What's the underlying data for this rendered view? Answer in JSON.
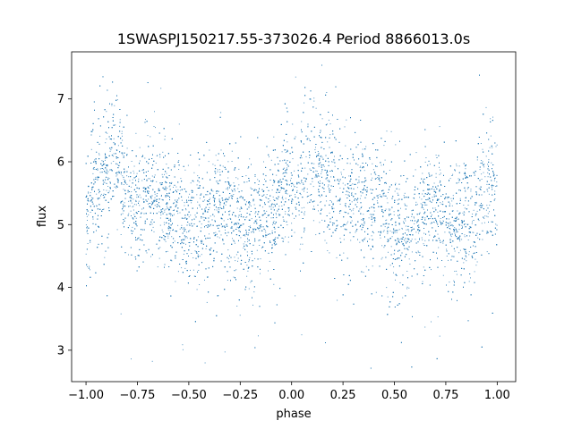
{
  "chart_data": {
    "type": "scatter",
    "title": "1SWASPJ150217.55-373026.4 Period 8866013.0s",
    "xlabel": "phase",
    "ylabel": "flux",
    "xlim": [
      -1.07,
      1.09
    ],
    "ylim": [
      2.5,
      7.75
    ],
    "xticks": [
      "−1.00",
      "−0.75",
      "−0.50",
      "−0.25",
      "0.00",
      "0.25",
      "0.50",
      "0.75",
      "1.00"
    ],
    "xtick_values": [
      -1.0,
      -0.75,
      -0.5,
      -0.25,
      0.0,
      0.25,
      0.5,
      0.75,
      1.0
    ],
    "yticks": [
      "3",
      "4",
      "5",
      "6",
      "7"
    ],
    "ytick_values": [
      3,
      4,
      5,
      6,
      7
    ],
    "grid": false,
    "marker_color": "#1f77b4",
    "series_trend": {
      "description_points_phase": [
        -1.0,
        -0.95,
        -0.9,
        -0.85,
        -0.8,
        -0.75,
        -0.7,
        -0.65,
        -0.6,
        -0.55,
        -0.5,
        -0.45,
        -0.4,
        -0.35,
        -0.3,
        -0.25,
        -0.2,
        -0.15,
        -0.1,
        -0.05,
        0.0,
        0.05,
        0.1,
        0.15,
        0.2,
        0.25,
        0.3,
        0.35,
        0.4,
        0.45,
        0.5,
        0.55,
        0.6,
        0.65,
        0.7,
        0.75,
        0.8,
        0.85,
        0.9,
        0.95,
        1.0
      ],
      "mean_flux": [
        5.1,
        5.6,
        5.9,
        6.1,
        5.5,
        5.3,
        5.6,
        5.4,
        5.3,
        5.2,
        5.0,
        4.9,
        5.1,
        5.3,
        5.2,
        5.1,
        5.0,
        5.0,
        5.2,
        5.5,
        5.8,
        5.6,
        6.0,
        5.9,
        5.6,
        5.3,
        5.6,
        5.4,
        5.3,
        5.2,
        5.0,
        4.9,
        5.1,
        5.3,
        5.2,
        5.1,
        5.0,
        5.0,
        5.3,
        5.6,
        5.5
      ],
      "scatter_spread": 0.55
    }
  }
}
